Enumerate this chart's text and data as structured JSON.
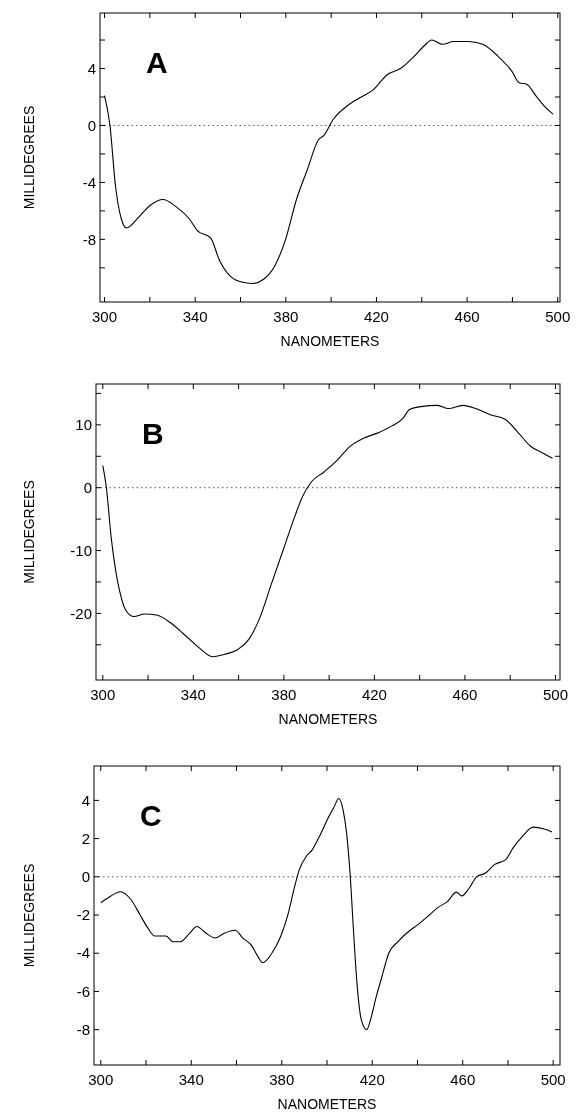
{
  "chart_data": [
    {
      "type": "line",
      "title": "A",
      "xlabel": "NANOMETERS",
      "ylabel": "MILLIDEGREES",
      "xlim": [
        298,
        501
      ],
      "ylim": [
        -12.4,
        7.9
      ],
      "xticks": [
        300,
        {
          "value": 320,
          "label": null
        },
        340,
        {
          "value": 360,
          "label": null
        },
        380,
        {
          "value": 400,
          "label": null
        },
        420,
        {
          "value": 440,
          "label": null
        },
        460,
        {
          "value": 480,
          "label": null
        },
        500
      ],
      "yticks": [
        {
          "value": -10,
          "label": null
        },
        -8,
        {
          "value": -6,
          "label": null
        },
        -4,
        {
          "value": -2,
          "label": null
        },
        0,
        {
          "value": 2,
          "label": null
        },
        4,
        {
          "value": 6,
          "label": null
        }
      ],
      "ref_lines": [
        {
          "axis": "y",
          "value": 0,
          "line_style": "dotted"
        }
      ],
      "grid": false,
      "marker": "none",
      "line_style": "solid",
      "series": [
        {
          "color": "#000000",
          "x": [
            300,
            302.4,
            304.8,
            307.3,
            309.7,
            315.3,
            320.2,
            325.8,
            331.5,
            337.1,
            341.1,
            346.8,
            350.8,
            355.6,
            360.5,
            365.3,
            370.2,
            375,
            379.8,
            384.7,
            389.5,
            394.4,
            396.8,
            400.8,
            407.3,
            412.1,
            418.5,
            425,
            430.6,
            436.3,
            441.1,
            444.4,
            449.2,
            454,
            460.5,
            466.9,
            473.4,
            479.8,
            483,
            486.3,
            490.3,
            494.4,
            497.9
          ],
          "values": [
            2.1,
            0,
            -4.2,
            -6.5,
            -7.2,
            -6.4,
            -5.6,
            -5.2,
            -5.7,
            -6.5,
            -7.4,
            -7.9,
            -9.5,
            -10.6,
            -11.0,
            -11.1,
            -10.8,
            -9.9,
            -8.05,
            -5.2,
            -3.1,
            -1.0,
            -0.7,
            0.4,
            1.4,
            1.9,
            2.5,
            3.6,
            4.0,
            4.8,
            5.6,
            6.0,
            5.7,
            5.9,
            5.9,
            5.7,
            4.9,
            3.8,
            3.0,
            2.9,
            2.1,
            1.3,
            0.8
          ]
        }
      ]
    },
    {
      "type": "line",
      "title": "B",
      "xlabel": "NANOMETERS",
      "ylabel": "MILLIDEGREES",
      "xlim": [
        297,
        502
      ],
      "ylim": [
        -30.6,
        16.5
      ],
      "xticks": [
        300,
        {
          "value": 320,
          "label": null
        },
        340,
        {
          "value": 360,
          "label": null
        },
        380,
        {
          "value": 400,
          "label": null
        },
        420,
        {
          "value": 440,
          "label": null
        },
        460,
        {
          "value": 480,
          "label": null
        },
        500
      ],
      "yticks": [
        {
          "value": -25,
          "label": null
        },
        -20,
        {
          "value": -15,
          "label": null
        },
        -10,
        {
          "value": -5,
          "label": null
        },
        0,
        {
          "value": 5,
          "label": null
        },
        10,
        {
          "value": 15,
          "label": null
        }
      ],
      "ref_lines": [
        {
          "axis": "y",
          "value": 0,
          "line_style": "dotted"
        }
      ],
      "grid": false,
      "marker": "none",
      "line_style": "solid",
      "series": [
        {
          "color": "#000000",
          "x": [
            300,
            301.6,
            303.7,
            305.7,
            308.1,
            310.5,
            313.7,
            318.6,
            324.2,
            329.9,
            335.5,
            342,
            348.5,
            354.1,
            359.8,
            364.6,
            369.5,
            374.3,
            380,
            384.8,
            388,
            392.1,
            397.7,
            403.4,
            409,
            415.5,
            422,
            427.6,
            432.5,
            435.7,
            440.5,
            447.8,
            452.7,
            459.1,
            464.8,
            471.2,
            477.7,
            483.4,
            489,
            493.9,
            498.7
          ],
          "values": [
            3.5,
            0,
            -7.9,
            -13.2,
            -17.4,
            -19.7,
            -20.5,
            -20.1,
            -20.3,
            -21.5,
            -23.2,
            -25.3,
            -26.9,
            -26.5,
            -25.7,
            -24.1,
            -20.6,
            -15.5,
            -9.6,
            -4.6,
            -1.6,
            0.9,
            2.5,
            4.3,
            6.5,
            7.9,
            8.8,
            9.8,
            11.0,
            12.5,
            12.9,
            13.1,
            12.6,
            13.1,
            12.6,
            11.6,
            10.9,
            8.8,
            6.6,
            5.6,
            4.7
          ]
        }
      ]
    },
    {
      "type": "line",
      "title": "C",
      "xlabel": "NANOMETERS",
      "ylabel": "MILLIDEGREES",
      "xlim": [
        297,
        503
      ],
      "ylim": [
        -9.85,
        5.8
      ],
      "xticks": [
        300,
        {
          "value": 320,
          "label": null
        },
        340,
        {
          "value": 360,
          "label": null
        },
        380,
        {
          "value": 400,
          "label": null
        },
        420,
        {
          "value": 440,
          "label": null
        },
        460,
        {
          "value": 480,
          "label": null
        },
        500
      ],
      "yticks": [
        -8,
        -6,
        -4,
        -2,
        0,
        2,
        4
      ],
      "ref_lines": [
        {
          "axis": "y",
          "value": 0,
          "line_style": "dotted"
        }
      ],
      "grid": false,
      "marker": "none",
      "line_style": "solid",
      "series": [
        {
          "color": "#000000",
          "x": [
            300,
            304.5,
            308.6,
            313.4,
            317.4,
            320.7,
            323.9,
            328.8,
            332,
            335.2,
            339.3,
            342.5,
            346.5,
            350.6,
            354.6,
            359.5,
            362.7,
            366.7,
            369.1,
            371.6,
            375.6,
            379.6,
            382.9,
            385.3,
            387.7,
            391,
            393.4,
            396.6,
            400.6,
            403.1,
            405.2,
            407.1,
            408.7,
            410.3,
            411.5,
            413.2,
            415.2,
            417.6,
            419.2,
            421.6,
            424.1,
            427.3,
            431.3,
            436.2,
            440.2,
            444.3,
            449.1,
            453.2,
            457.2,
            459.6,
            462.8,
            466.1,
            470.1,
            474.2,
            479,
            482.2,
            486.3,
            491.1,
            496,
            499.5
          ],
          "values": [
            -1.36,
            -1.0,
            -0.78,
            -1.2,
            -2.0,
            -2.66,
            -3.1,
            -3.1,
            -3.4,
            -3.4,
            -2.95,
            -2.6,
            -2.95,
            -3.2,
            -2.95,
            -2.8,
            -3.2,
            -3.6,
            -4.1,
            -4.5,
            -4.0,
            -3.1,
            -1.9,
            -0.7,
            0.35,
            1.1,
            1.4,
            2.1,
            3.1,
            3.65,
            4.1,
            3.5,
            2.25,
            0,
            -2.4,
            -5.5,
            -7.5,
            -8.0,
            -7.5,
            -6.35,
            -5.3,
            -4.0,
            -3.4,
            -2.85,
            -2.5,
            -2.1,
            -1.6,
            -1.3,
            -0.8,
            -1.0,
            -0.6,
            0,
            0.2,
            0.65,
            0.9,
            1.5,
            2.1,
            2.6,
            2.5,
            2.35
          ]
        }
      ]
    }
  ]
}
